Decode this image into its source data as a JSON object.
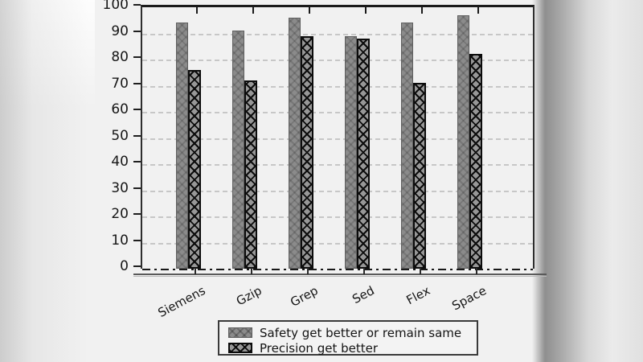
{
  "chart_data": {
    "type": "bar",
    "categories": [
      "Siemens",
      "Gzip",
      "Grep",
      "Sed",
      "Flex",
      "Space"
    ],
    "series": [
      {
        "name": "Safety get better or remain same",
        "style": "solid-gray",
        "values": [
          94,
          91,
          96,
          89,
          94,
          97
        ]
      },
      {
        "name": "Precision get better",
        "style": "black-crosshatch",
        "values": [
          76,
          72,
          89,
          88,
          71,
          82
        ]
      }
    ],
    "title": "",
    "xlabel": "",
    "ylabel": "",
    "ylim": [
      0,
      100
    ],
    "yticks": [
      0,
      10,
      20,
      30,
      40,
      50,
      60,
      70,
      80,
      90,
      100
    ],
    "grid": "horizontal-dashed",
    "zero_line": "dash-dot",
    "legend_position": "bottom-center"
  },
  "colors": {
    "bar_gray": "#8b8b8b",
    "hatch_black": "#0c0c0c",
    "background": "#f1f1f1",
    "gridline": "#c7c7c7",
    "axis": "#1a1a1a"
  }
}
